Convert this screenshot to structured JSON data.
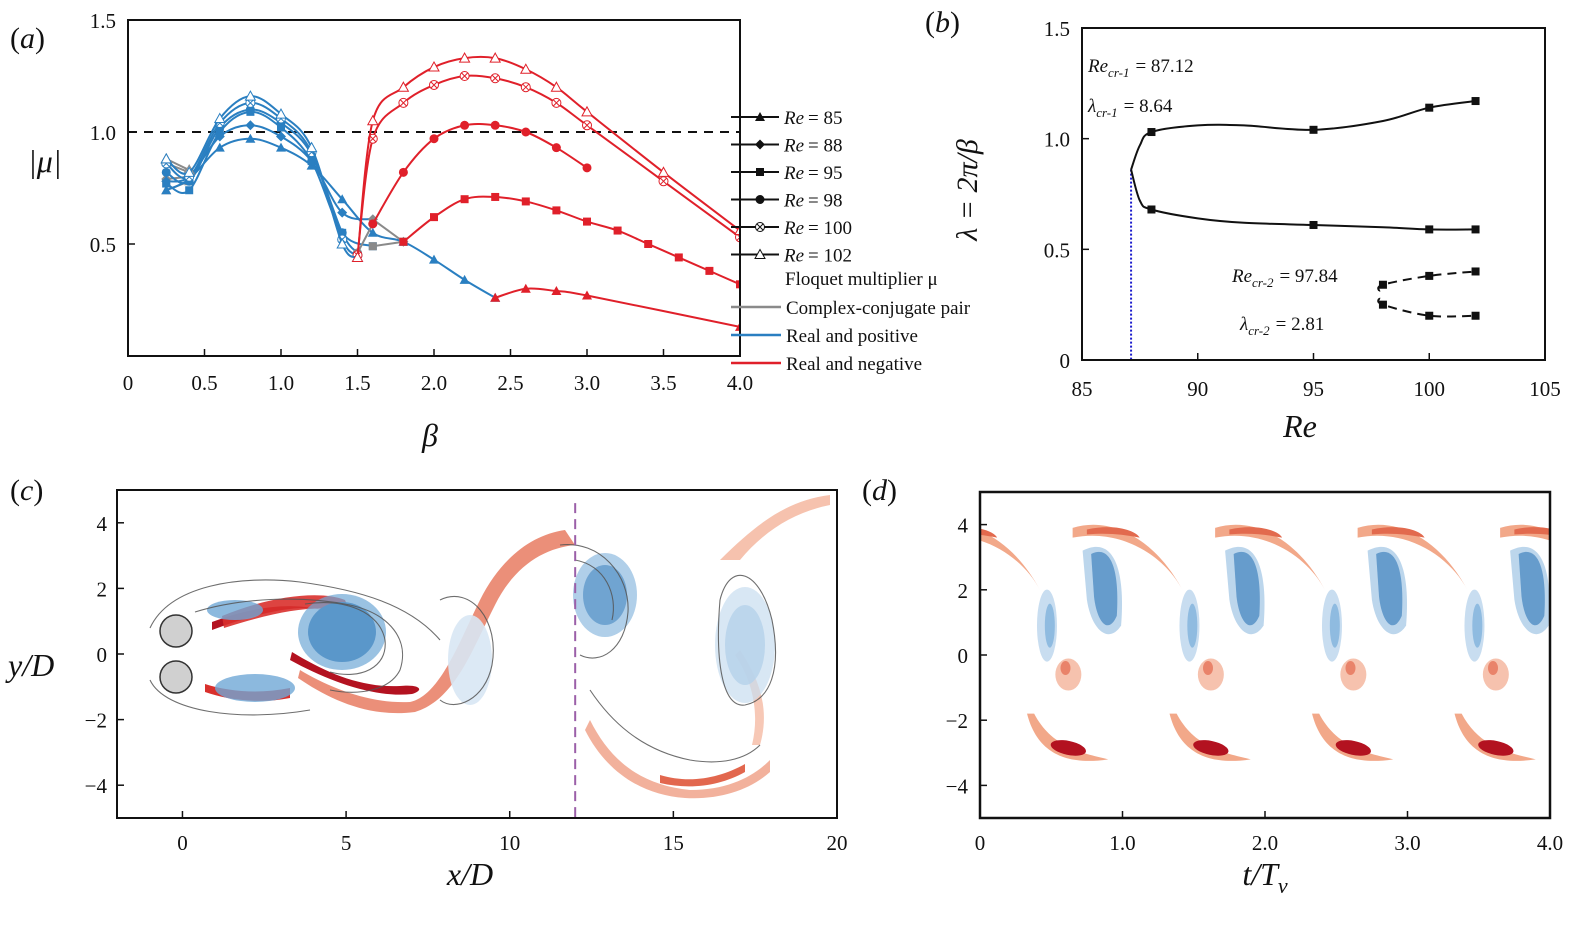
{
  "colors": {
    "gray": "#8a8a8a",
    "blue": "#2a7fc1",
    "red": "#e0202a",
    "black": "#111111",
    "blueRef": "#1a1acc"
  },
  "chart_data": [
    {
      "panel": "(a)",
      "type": "line",
      "xlabel": "β",
      "ylabel": "|μ|",
      "xlim": [
        0,
        4
      ],
      "ylim": [
        0,
        1.5
      ],
      "xticks": [
        "0",
        "0.5",
        "1.0",
        "1.5",
        "2.0",
        "2.5",
        "3.0",
        "3.5",
        "4.0"
      ],
      "yticks": [
        "0.5",
        "1.0",
        "1.5"
      ],
      "reference_line_y": 1.0,
      "legend_series": [
        "= 85",
        "= 88",
        "= 95",
        "= 98",
        "= 100",
        "= 102"
      ],
      "legend_prefix": "Re ",
      "legend_title": "Floquet multiplier μ",
      "legend_types": [
        "Complex-conjugate pair",
        "Real and positive",
        "Real and negative"
      ],
      "series": [
        {
          "name": "Re = 85",
          "marker": "triangle",
          "segments": [
            {
              "branch": "gray",
              "x": [
                0.25,
                0.4
              ],
              "y": [
                0.74,
                0.78
              ]
            },
            {
              "branch": "blue",
              "x": [
                0.25,
                0.4,
                0.6,
                0.8,
                1.0,
                1.2,
                1.4,
                1.6,
                1.8,
                2.0,
                2.2,
                2.4
              ],
              "y": [
                0.74,
                0.79,
                0.93,
                0.97,
                0.93,
                0.85,
                0.7,
                0.55,
                0.51,
                0.43,
                0.34,
                0.26
              ]
            },
            {
              "branch": "red",
              "x": [
                2.4,
                2.6,
                2.8,
                3.0,
                4.0
              ],
              "y": [
                0.26,
                0.3,
                0.29,
                0.27,
                0.13
              ]
            }
          ]
        },
        {
          "name": "Re = 88",
          "marker": "diamond",
          "segments": [
            {
              "branch": "gray",
              "x": [
                0.25,
                0.4
              ],
              "y": [
                0.79,
                0.8
              ]
            },
            {
              "branch": "blue",
              "x": [
                0.25,
                0.4,
                0.6,
                0.8,
                1.0,
                1.2,
                1.4,
                1.6
              ],
              "y": [
                0.78,
                0.8,
                0.98,
                1.03,
                0.98,
                0.87,
                0.64,
                0.61
              ]
            },
            {
              "branch": "gray",
              "x": [
                1.6,
                1.8
              ],
              "y": [
                0.61,
                0.51
              ]
            }
          ]
        },
        {
          "name": "Re = 95",
          "marker": "square",
          "segments": [
            {
              "branch": "gray",
              "x": [
                0.25
              ],
              "y": [
                0.77
              ]
            },
            {
              "branch": "blue",
              "x": [
                0.25,
                0.4,
                0.6,
                0.8,
                1.0,
                1.2,
                1.4,
                1.6
              ],
              "y": [
                0.77,
                0.74,
                1.0,
                1.09,
                1.02,
                0.87,
                0.55,
                0.49
              ]
            },
            {
              "branch": "gray",
              "x": [
                1.6,
                1.8
              ],
              "y": [
                0.49,
                0.51
              ]
            },
            {
              "branch": "red",
              "x": [
                1.8,
                2.0,
                2.2,
                2.4,
                2.6,
                2.8,
                3.0,
                3.2,
                3.4,
                3.6,
                3.8,
                4.0
              ],
              "y": [
                0.51,
                0.62,
                0.7,
                0.71,
                0.69,
                0.65,
                0.6,
                0.56,
                0.5,
                0.44,
                0.38,
                0.32
              ]
            }
          ]
        },
        {
          "name": "Re = 98",
          "marker": "circle",
          "segments": [
            {
              "branch": "blue",
              "x": [
                0.25,
                0.4,
                0.6,
                0.8,
                1.0,
                1.2,
                1.4,
                1.5
              ],
              "y": [
                0.82,
                0.78,
                1.02,
                1.1,
                1.04,
                0.9,
                0.55,
                0.46
              ]
            },
            {
              "branch": "gray",
              "x": [
                1.5,
                1.6
              ],
              "y": [
                0.46,
                0.59
              ]
            },
            {
              "branch": "red",
              "x": [
                1.6,
                1.8,
                2.0,
                2.2,
                2.4,
                2.6,
                2.8,
                3.0
              ],
              "y": [
                0.59,
                0.82,
                0.97,
                1.03,
                1.03,
                1.0,
                0.93,
                0.84
              ]
            }
          ]
        },
        {
          "name": "Re = 100",
          "marker": "circle-x",
          "segments": [
            {
              "branch": "gray",
              "x": [
                0.25,
                0.4
              ],
              "y": [
                0.86,
                0.82
              ]
            },
            {
              "branch": "blue",
              "x": [
                0.25,
                0.4,
                0.6,
                0.8,
                1.0,
                1.2,
                1.4,
                1.5
              ],
              "y": [
                0.86,
                0.8,
                1.04,
                1.13,
                1.06,
                0.91,
                0.52,
                0.45
              ]
            },
            {
              "branch": "red",
              "x": [
                1.5,
                1.6,
                1.8,
                2.0,
                2.2,
                2.4,
                2.6,
                2.8,
                3.0,
                3.5,
                4.0
              ],
              "y": [
                0.45,
                0.97,
                1.13,
                1.21,
                1.25,
                1.24,
                1.2,
                1.13,
                1.03,
                0.78,
                0.53
              ]
            }
          ]
        },
        {
          "name": "Re = 102",
          "marker": "triangle-open",
          "segments": [
            {
              "branch": "gray",
              "x": [
                0.25,
                0.4
              ],
              "y": [
                0.88,
                0.83
              ]
            },
            {
              "branch": "blue",
              "x": [
                0.25,
                0.4,
                0.6,
                0.8,
                1.0,
                1.2,
                1.4,
                1.5
              ],
              "y": [
                0.88,
                0.82,
                1.06,
                1.16,
                1.08,
                0.93,
                0.5,
                0.44
              ]
            },
            {
              "branch": "red",
              "x": [
                1.5,
                1.6,
                1.8,
                2.0,
                2.2,
                2.4,
                2.6,
                2.8,
                3.0,
                3.5,
                4.0
              ],
              "y": [
                0.44,
                1.05,
                1.2,
                1.29,
                1.33,
                1.33,
                1.28,
                1.2,
                1.09,
                0.82,
                0.56
              ]
            }
          ]
        }
      ]
    },
    {
      "panel": "(b)",
      "type": "line",
      "xlabel": "Re",
      "ylabel": "λ = 2π/β",
      "xlim": [
        85,
        105
      ],
      "ylim": [
        0,
        1.5
      ],
      "xticks": [
        "85",
        "90",
        "95",
        "100",
        "105"
      ],
      "yticks": [
        "0",
        "0.5",
        "1.0",
        "1.5"
      ],
      "critical_Re_line": 87.12,
      "annotations": {
        "re1": "= 87.12",
        "lam1": "= 8.64",
        "re2": "= 97.84",
        "lam2": "= 2.81",
        "re1_sym": "Re",
        "re1_sub": "cr-1",
        "lam1_sym": "λ",
        "lam1_sub": "cr-1",
        "re2_sym": "Re",
        "re2_sub": "cr-2",
        "lam2_sym": "λ",
        "lam2_sub": "cr-2"
      },
      "series": [
        {
          "name": "upper branch",
          "style": "solid",
          "x": [
            87.12,
            87.5,
            88,
            90,
            92,
            95,
            98,
            100,
            102
          ],
          "y": [
            0.86,
            0.97,
            1.03,
            1.06,
            1.06,
            1.04,
            1.08,
            1.14,
            1.17
          ]
        },
        {
          "name": "lower branch",
          "style": "solid",
          "x": [
            87.12,
            87.5,
            88,
            90,
            92,
            95,
            98,
            100,
            102
          ],
          "y": [
            0.86,
            0.72,
            0.68,
            0.64,
            0.62,
            0.61,
            0.6,
            0.59,
            0.59
          ]
        },
        {
          "name": "upper branch 2",
          "style": "dashed",
          "x": [
            97.84,
            98,
            100,
            102
          ],
          "y": [
            0.31,
            0.34,
            0.38,
            0.4
          ]
        },
        {
          "name": "lower branch 2",
          "style": "dashed",
          "x": [
            97.84,
            98,
            100,
            102
          ],
          "y": [
            0.28,
            0.25,
            0.2,
            0.2
          ]
        }
      ],
      "markers": {
        "upper": [
          88,
          95,
          100,
          102
        ],
        "lower": [
          88,
          95,
          100,
          102
        ],
        "upper2": [
          98,
          100,
          102
        ],
        "lower2": [
          98,
          100,
          102
        ]
      }
    },
    {
      "panel": "(c)",
      "type": "heatmap",
      "xlabel": "x/D",
      "ylabel": "y/D",
      "xlim": [
        -2,
        20
      ],
      "ylim": [
        -5,
        5
      ],
      "xticks": [
        "0",
        "5",
        "10",
        "15",
        "20"
      ],
      "yticks": [
        "4",
        "2",
        "0",
        "−2",
        "−4"
      ],
      "section_line_x": 12
    },
    {
      "panel": "(d)",
      "type": "heatmap",
      "xlabel": "t/T",
      "xlabel_sub": "v",
      "ylabel": "",
      "xlim": [
        0,
        4
      ],
      "ylim": [
        -5,
        5
      ],
      "xticks": [
        "0",
        "1.0",
        "2.0",
        "3.0",
        "4.0"
      ],
      "yticks": [
        "4",
        "2",
        "0",
        "−2",
        "−4"
      ]
    }
  ]
}
